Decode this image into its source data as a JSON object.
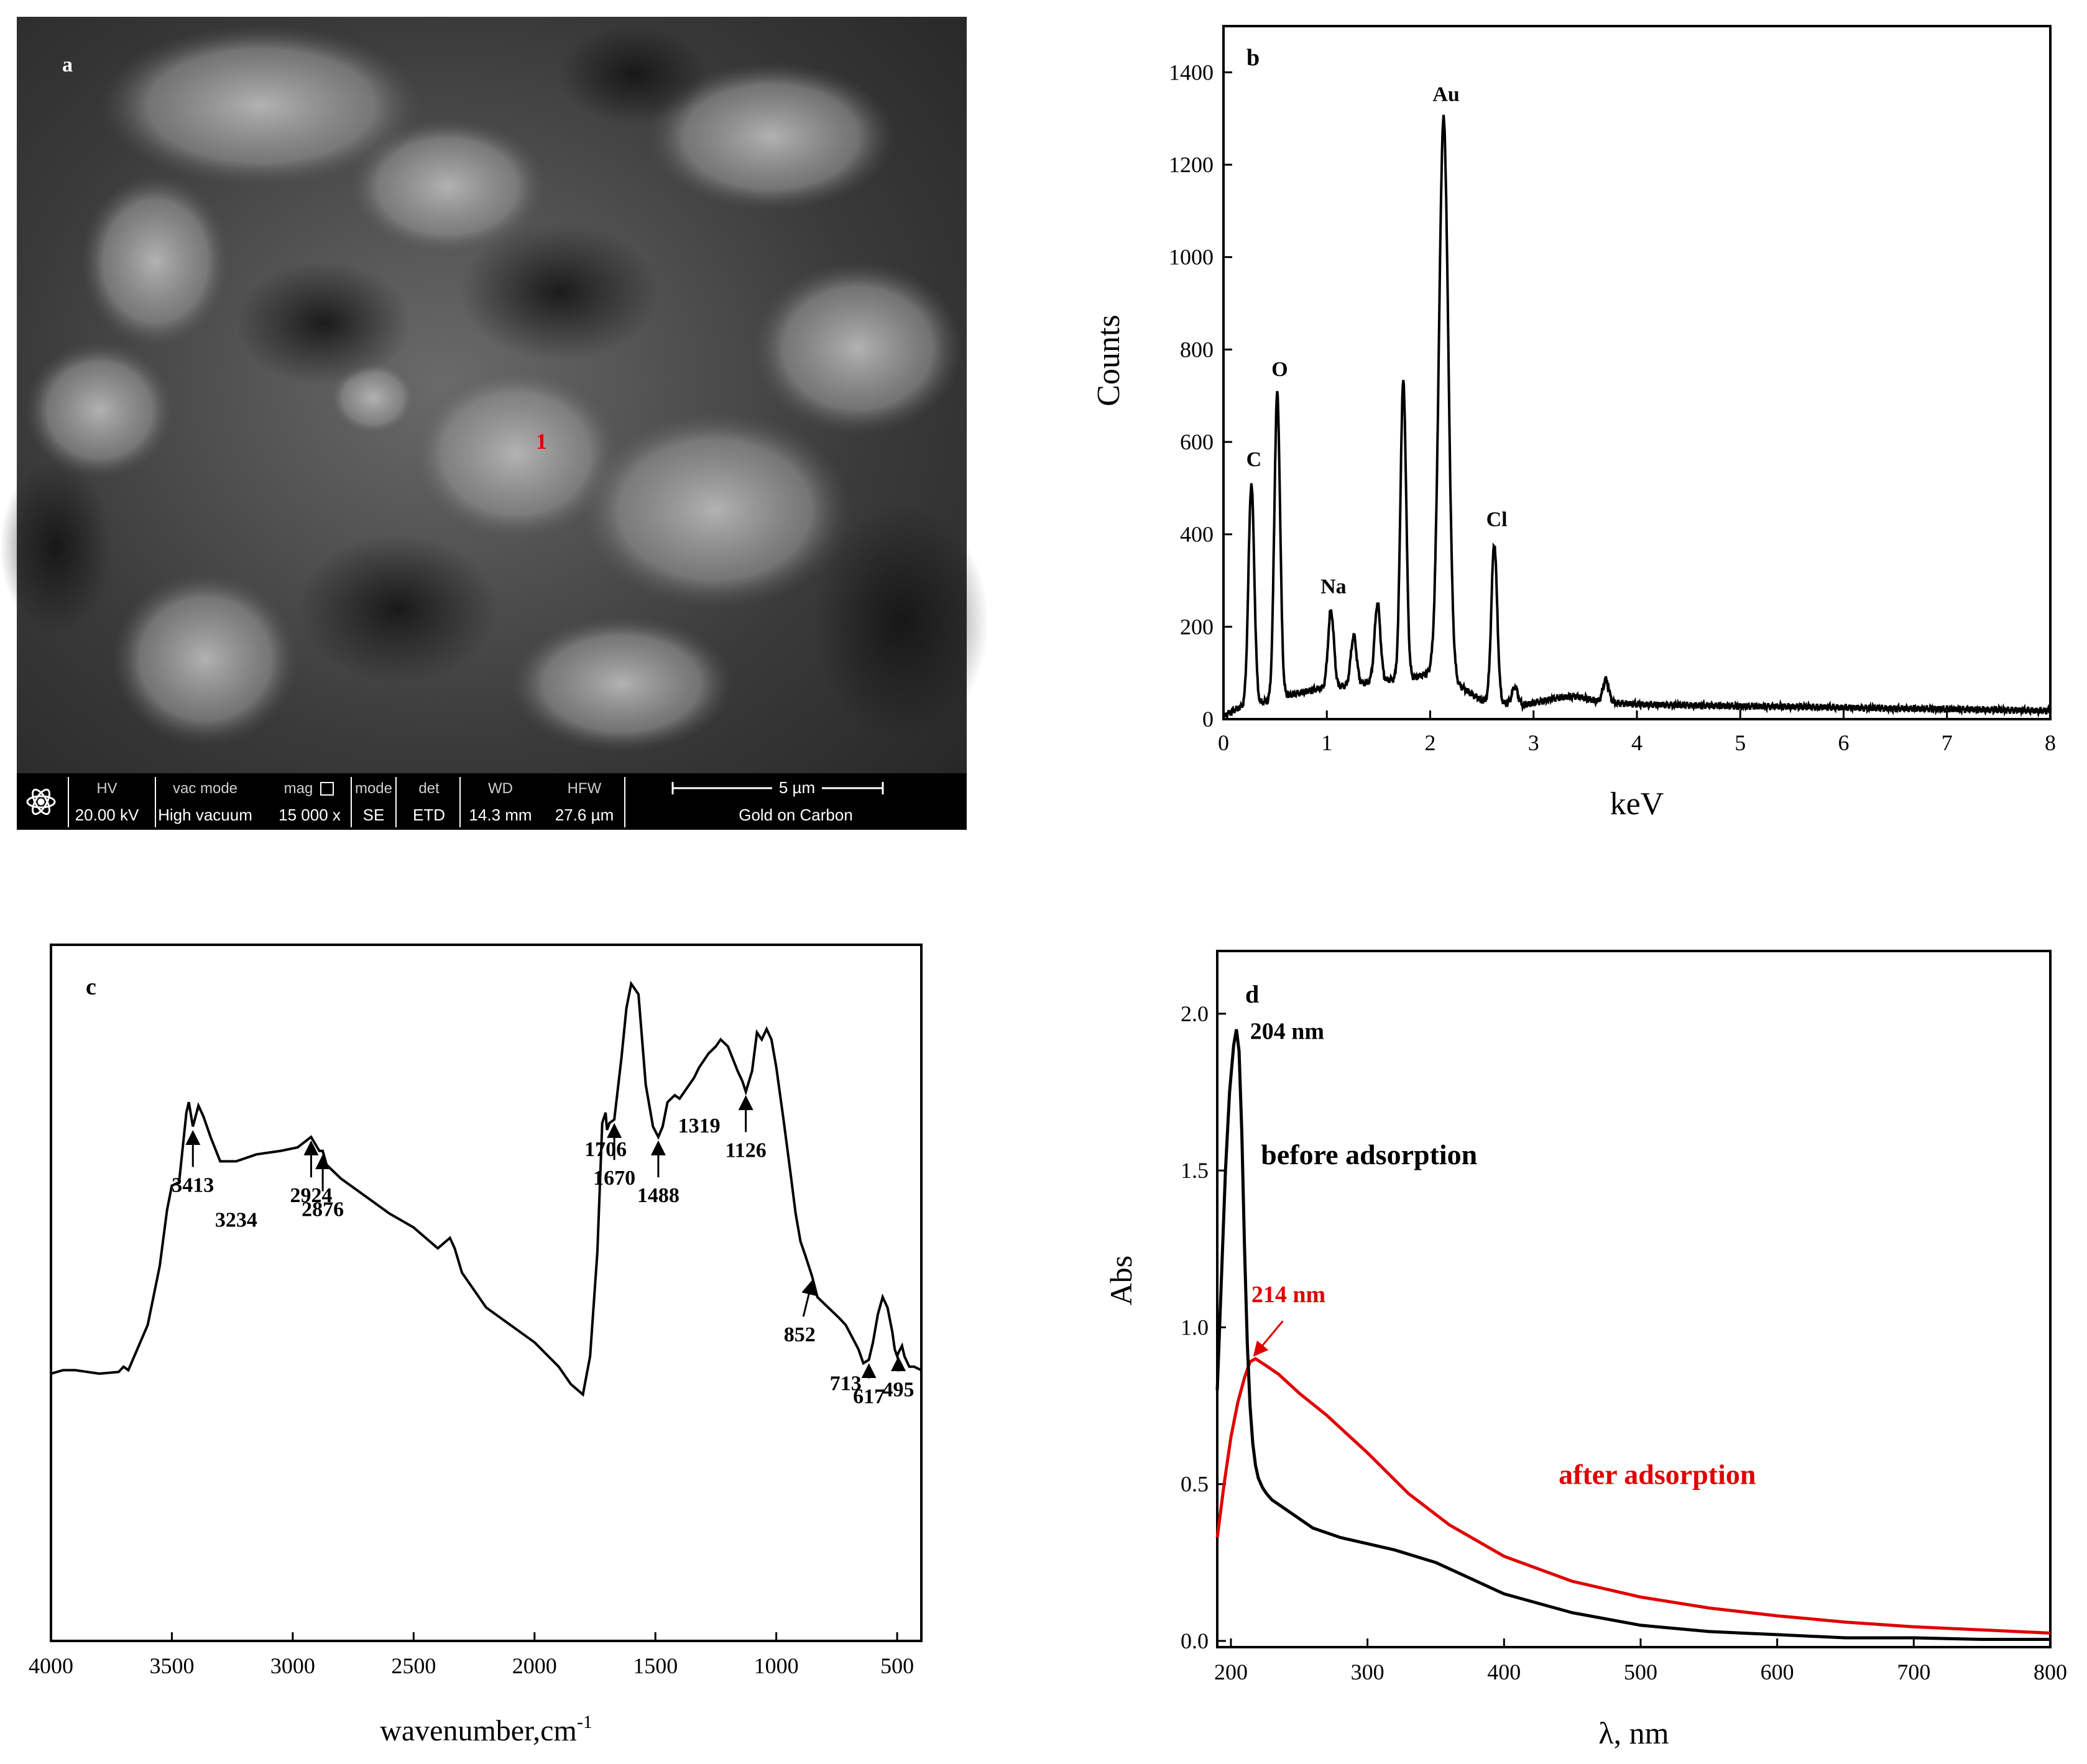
{
  "panels": {
    "a": {
      "label": "a",
      "point_marker": "1"
    },
    "b": {
      "label": "b"
    },
    "c": {
      "label": "c"
    },
    "d": {
      "label": "d"
    }
  },
  "sem_info_bar": {
    "headers": {
      "hv": "HV",
      "vac_mode": "vac mode",
      "mag": "mag",
      "mode": "mode",
      "det": "det",
      "wd": "WD",
      "hfw": "HFW"
    },
    "values": {
      "hv": "20.00 kV",
      "vac_mode": "High vacuum",
      "mag": "15 000 x",
      "mode": "SE",
      "det": "ETD",
      "wd": "14.3 mm",
      "hfw": "27.6 µm"
    },
    "scale_bar": "5 µm",
    "coating": "Gold on Carbon",
    "logo_icon": "atom-logo-icon"
  },
  "chart_data": [
    {
      "panel": "b",
      "type": "line",
      "xlabel": "keV",
      "ylabel": "Counts",
      "xlim": [
        0,
        8
      ],
      "ylim": [
        0,
        1500
      ],
      "xticks": [
        0,
        1,
        2,
        3,
        4,
        5,
        6,
        7,
        8
      ],
      "yticks": [
        0,
        200,
        400,
        600,
        800,
        1000,
        1200,
        1400
      ],
      "baseline": [
        [
          0.0,
          5
        ],
        [
          0.1,
          20
        ],
        [
          0.2,
          28
        ],
        [
          0.35,
          35
        ],
        [
          0.45,
          40
        ],
        [
          0.6,
          50
        ],
        [
          0.8,
          60
        ],
        [
          0.9,
          65
        ],
        [
          1.1,
          70
        ],
        [
          1.3,
          75
        ],
        [
          1.4,
          80
        ],
        [
          1.6,
          85
        ],
        [
          1.85,
          90
        ],
        [
          2.0,
          100
        ],
        [
          2.3,
          70
        ],
        [
          2.5,
          40
        ],
        [
          2.7,
          35
        ],
        [
          2.9,
          30
        ],
        [
          3.2,
          45
        ],
        [
          3.4,
          50
        ],
        [
          3.6,
          40
        ],
        [
          3.8,
          35
        ],
        [
          4.0,
          32
        ],
        [
          4.5,
          30
        ],
        [
          5.0,
          28
        ],
        [
          5.5,
          27
        ],
        [
          6.0,
          25
        ],
        [
          6.5,
          23
        ],
        [
          7.0,
          22
        ],
        [
          7.5,
          20
        ],
        [
          8.0,
          18
        ]
      ],
      "peaks": [
        {
          "element": "C",
          "x": 0.27,
          "y": 510
        },
        {
          "element": "O",
          "x": 0.52,
          "y": 705
        },
        {
          "element": "Na",
          "x": 1.04,
          "y": 235
        },
        {
          "element": "",
          "x": 1.26,
          "y": 180
        },
        {
          "element": "",
          "x": 1.49,
          "y": 250
        },
        {
          "element": "",
          "x": 1.74,
          "y": 730
        },
        {
          "element": "Au",
          "x": 2.13,
          "y": 1300
        },
        {
          "element": "Cl",
          "x": 2.62,
          "y": 380
        },
        {
          "element": "",
          "x": 2.82,
          "y": 70
        },
        {
          "element": "",
          "x": 3.7,
          "y": 85
        }
      ]
    },
    {
      "panel": "c",
      "type": "line",
      "xlabel": "wavenumber,cm",
      "xlabel_superscript": "-1",
      "xlim": [
        4000,
        400
      ],
      "xticks": [
        4000,
        3500,
        3000,
        2500,
        2000,
        1500,
        1000,
        500
      ],
      "series": [
        {
          "x": [
            4000,
            3950,
            3900,
            3800,
            3720,
            3700,
            3680,
            3600,
            3550,
            3520,
            3500,
            3470,
            3440,
            3430,
            3413,
            3390,
            3370,
            3340,
            3300,
            3234,
            3150,
            3050,
            2980,
            2924,
            2890,
            2876,
            2860,
            2800,
            2700,
            2600,
            2500,
            2400,
            2350,
            2330,
            2300,
            2250,
            2200,
            2100,
            2000,
            1900,
            1850,
            1800,
            1770,
            1740,
            1720,
            1706,
            1700,
            1690,
            1670,
            1640,
            1620,
            1600,
            1570,
            1540,
            1510,
            1488,
            1470,
            1450,
            1420,
            1400,
            1380,
            1340,
            1319,
            1280,
            1250,
            1230,
            1200,
            1160,
            1140,
            1126,
            1100,
            1080,
            1060,
            1040,
            1020,
            1000,
            970,
            940,
            920,
            900,
            880,
            852,
            830,
            800,
            770,
            740,
            713,
            690,
            660,
            640,
            617,
            600,
            580,
            560,
            540,
            520,
            510,
            500,
            495,
            480,
            470,
            450,
            430,
            400
          ],
          "y": [
            0.0,
            0.01,
            0.01,
            0.0,
            0.005,
            0.02,
            0.01,
            0.14,
            0.31,
            0.47,
            0.54,
            0.55,
            0.75,
            0.78,
            0.71,
            0.77,
            0.74,
            0.68,
            0.61,
            0.61,
            0.63,
            0.64,
            0.65,
            0.68,
            0.64,
            0.64,
            0.6,
            0.56,
            0.51,
            0.46,
            0.42,
            0.36,
            0.39,
            0.36,
            0.29,
            0.24,
            0.19,
            0.14,
            0.09,
            0.02,
            -0.03,
            -0.06,
            0.05,
            0.35,
            0.72,
            0.75,
            0.7,
            0.72,
            0.73,
            0.91,
            1.05,
            1.12,
            1.09,
            0.83,
            0.71,
            0.68,
            0.71,
            0.78,
            0.8,
            0.79,
            0.81,
            0.85,
            0.88,
            0.92,
            0.94,
            0.96,
            0.94,
            0.87,
            0.84,
            0.81,
            0.87,
            0.98,
            0.96,
            0.99,
            0.96,
            0.88,
            0.73,
            0.57,
            0.46,
            0.38,
            0.34,
            0.28,
            0.22,
            0.2,
            0.18,
            0.16,
            0.14,
            0.11,
            0.07,
            0.03,
            0.04,
            0.09,
            0.17,
            0.22,
            0.19,
            0.12,
            0.07,
            0.05,
            0.06,
            0.08,
            0.05,
            0.02,
            0.02,
            0.01
          ]
        }
      ],
      "annotations": [
        {
          "text": "3413",
          "x": 3413,
          "arrow": true
        },
        {
          "text": "3234",
          "x": 3234,
          "arrow": false
        },
        {
          "text": "2924",
          "x": 2924,
          "arrow": true
        },
        {
          "text": "2876",
          "x": 2876,
          "arrow": true
        },
        {
          "text": "1706",
          "x": 1706,
          "arrow": false
        },
        {
          "text": "1670",
          "x": 1670,
          "arrow": true
        },
        {
          "text": "1488",
          "x": 1488,
          "arrow": true
        },
        {
          "text": "1319",
          "x": 1319,
          "arrow": false
        },
        {
          "text": "1126",
          "x": 1126,
          "arrow": true
        },
        {
          "text": "852",
          "x": 852,
          "arrow": true
        },
        {
          "text": "713",
          "x": 713,
          "arrow": false
        },
        {
          "text": "617",
          "x": 617,
          "arrow": true
        },
        {
          "text": "495",
          "x": 495,
          "arrow": true
        }
      ]
    },
    {
      "panel": "d",
      "type": "line",
      "xlabel": "λ, nm",
      "ylabel": "Abs",
      "xlim": [
        190,
        800
      ],
      "ylim": [
        0,
        2.2
      ],
      "xticks": [
        200,
        300,
        400,
        500,
        600,
        700,
        800
      ],
      "yticks": [
        0.0,
        0.5,
        1.0,
        1.5,
        2.0
      ],
      "ytick_labels": [
        "0.0",
        "0.5",
        "1.0",
        "1.5",
        "2.0"
      ],
      "series": [
        {
          "name": "before adsorption",
          "color": "#000000",
          "x": [
            190,
            193,
            196,
            199,
            202,
            204,
            206,
            208,
            210,
            212,
            214,
            216,
            218,
            220,
            223,
            226,
            230,
            240,
            250,
            260,
            280,
            300,
            320,
            350,
            380,
            400,
            450,
            500,
            550,
            600,
            650,
            700,
            750,
            800
          ],
          "y": [
            0.8,
            1.15,
            1.5,
            1.75,
            1.9,
            1.95,
            1.88,
            1.62,
            1.25,
            0.95,
            0.75,
            0.63,
            0.56,
            0.52,
            0.49,
            0.47,
            0.45,
            0.42,
            0.39,
            0.36,
            0.33,
            0.31,
            0.29,
            0.25,
            0.19,
            0.15,
            0.09,
            0.05,
            0.03,
            0.02,
            0.01,
            0.01,
            0.005,
            0.005
          ]
        },
        {
          "name": "after adsorption",
          "color": "#e00000",
          "x": [
            190,
            195,
            200,
            205,
            210,
            214,
            218,
            225,
            235,
            250,
            270,
            300,
            330,
            360,
            400,
            450,
            500,
            550,
            600,
            650,
            700,
            750,
            800
          ],
          "y": [
            0.33,
            0.5,
            0.65,
            0.76,
            0.84,
            0.89,
            0.9,
            0.88,
            0.85,
            0.79,
            0.72,
            0.6,
            0.47,
            0.37,
            0.27,
            0.19,
            0.14,
            0.105,
            0.08,
            0.06,
            0.045,
            0.035,
            0.025
          ]
        }
      ],
      "annotations": [
        {
          "text": "204 nm",
          "color": "#000000"
        },
        {
          "text": "214 nm",
          "color": "#e00000"
        },
        {
          "text": "before adsorption",
          "color": "#000000"
        },
        {
          "text": "after adsorption",
          "color": "#e00000"
        }
      ]
    }
  ]
}
